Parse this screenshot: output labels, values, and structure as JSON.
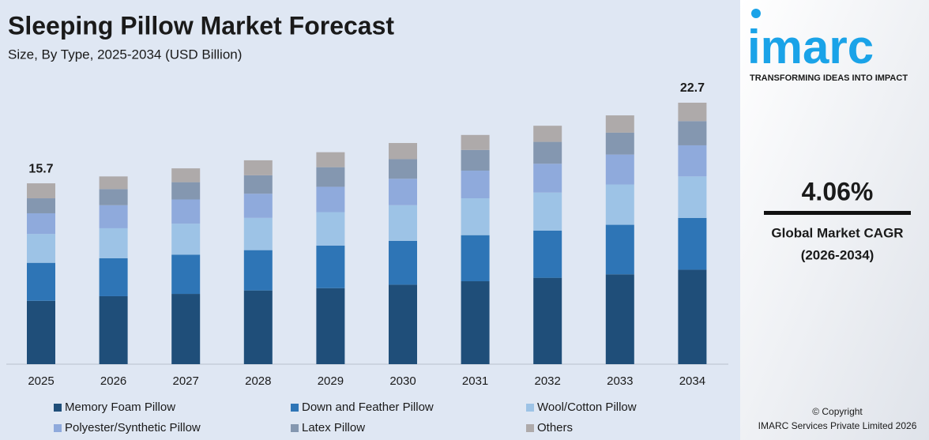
{
  "chart_data": {
    "type": "stacked-bar",
    "title": "Sleeping Pillow Market Forecast",
    "subtitle": "Size, By Type, 2025-2034 (USD Billion)",
    "categories": [
      "2025",
      "2026",
      "2027",
      "2028",
      "2029",
      "2030",
      "2031",
      "2032",
      "2033",
      "2034"
    ],
    "series": [
      {
        "name": "Memory Foam Pillow",
        "color": "#1f4e79",
        "values": [
          5.5,
          5.9,
          6.1,
          6.4,
          6.6,
          6.9,
          7.2,
          7.5,
          7.8,
          8.2
        ]
      },
      {
        "name": "Down and Feather Pillow",
        "color": "#2e75b6",
        "values": [
          3.3,
          3.3,
          3.4,
          3.5,
          3.7,
          3.8,
          4.0,
          4.1,
          4.3,
          4.5
        ]
      },
      {
        "name": "Wool/Cotton Pillow",
        "color": "#9dc3e6",
        "values": [
          2.5,
          2.6,
          2.7,
          2.8,
          2.9,
          3.1,
          3.2,
          3.3,
          3.5,
          3.6
        ]
      },
      {
        "name": "Polyester/Synthetic Pillow",
        "color": "#8faadc",
        "values": [
          1.8,
          2.0,
          2.1,
          2.1,
          2.2,
          2.3,
          2.4,
          2.5,
          2.6,
          2.7
        ]
      },
      {
        "name": "Latex Pillow",
        "color": "#8497b0",
        "values": [
          1.3,
          1.4,
          1.5,
          1.6,
          1.7,
          1.7,
          1.8,
          1.9,
          1.9,
          2.1
        ]
      },
      {
        "name": "Others",
        "color": "#aeaaaa",
        "values": [
          1.3,
          1.1,
          1.2,
          1.3,
          1.3,
          1.4,
          1.3,
          1.4,
          1.5,
          1.6
        ]
      }
    ],
    "totals": [
      15.7,
      null,
      null,
      null,
      null,
      null,
      null,
      null,
      null,
      22.7
    ],
    "legend": "bottom"
  },
  "sidebar": {
    "logo": "imarc",
    "tagline": "TRANSFORMING IDEAS INTO IMPACT",
    "cagr": "4.06%",
    "cagr_label": "Global Market CAGR",
    "cagr_period": "(2026-2034)",
    "copyright": "© Copyright",
    "company": "IMARC Services Private Limited 2026"
  }
}
